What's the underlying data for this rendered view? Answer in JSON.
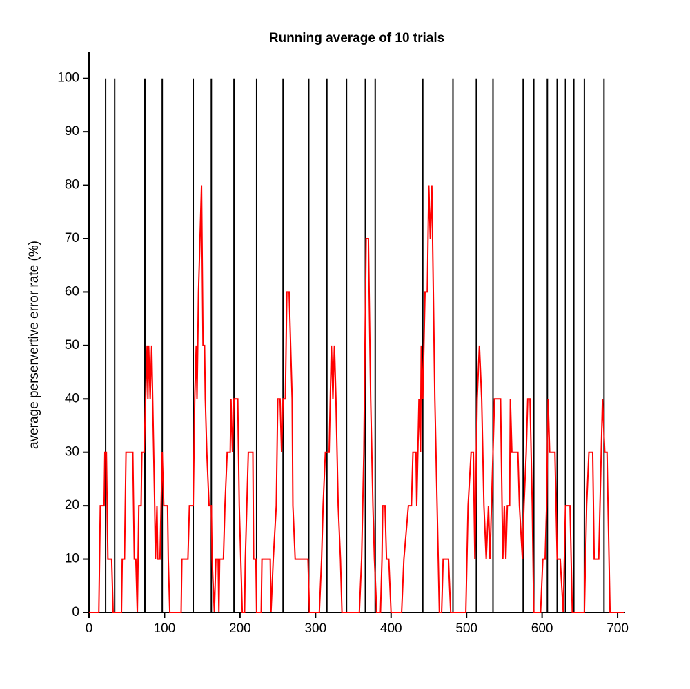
{
  "chart_data": {
    "type": "line",
    "title": "Running average of 10 trials",
    "ylabel": "average perservertive error rate (%)",
    "xlim": [
      0,
      710
    ],
    "ylim": [
      0,
      105
    ],
    "xticks": [
      0,
      100,
      200,
      300,
      400,
      500,
      600,
      700
    ],
    "yticks": [
      0,
      10,
      20,
      30,
      40,
      50,
      60,
      70,
      80,
      90,
      100
    ],
    "vlines": {
      "color": "#000000",
      "ymin": 0,
      "ymax": 100,
      "x": [
        22,
        34,
        74,
        97,
        138,
        162,
        192,
        222,
        257,
        291,
        315,
        341,
        366,
        379,
        442,
        482,
        513,
        535,
        575,
        589,
        607,
        620,
        631,
        642,
        656,
        682
      ]
    },
    "series": [
      {
        "color": "#ff0000",
        "x": [
          0,
          13,
          15,
          20,
          21,
          23,
          24,
          25,
          30,
          32,
          43,
          44,
          47,
          48,
          49,
          58,
          59,
          60,
          62,
          64,
          66,
          69,
          70,
          73,
          75,
          77,
          78,
          79,
          81,
          83,
          87,
          88,
          90,
          91,
          94,
          97,
          99,
          104,
          105,
          107,
          122,
          123,
          131,
          133,
          138,
          140,
          142,
          143,
          145,
          149,
          151,
          153,
          154,
          156,
          159,
          162,
          163,
          166,
          168,
          171,
          172,
          173,
          178,
          180,
          183,
          187,
          188,
          190,
          192,
          197,
          199,
          201,
          203,
          206,
          207,
          209,
          211,
          217,
          218,
          221,
          222,
          228,
          229,
          240,
          241,
          244,
          248,
          250,
          253,
          255,
          257,
          260,
          262,
          265,
          267,
          269,
          270,
          273,
          290,
          292,
          305,
          308,
          310,
          313,
          318,
          321,
          323,
          325,
          327,
          330,
          333,
          335,
          358,
          361,
          364,
          367,
          370,
          373,
          376,
          378,
          381,
          386,
          388,
          389,
          392,
          394,
          397,
          400,
          414,
          417,
          423,
          427,
          429,
          433,
          434,
          437,
          439,
          440,
          442,
          445,
          448,
          450,
          452,
          454,
          456,
          458,
          461,
          464,
          467,
          469,
          476,
          479,
          499,
          502,
          506,
          509,
          511,
          514,
          517,
          520,
          523,
          526,
          529,
          531,
          535,
          537,
          545,
          547,
          548,
          550,
          552,
          554,
          557,
          558,
          560,
          568,
          570,
          574,
          576,
          579,
          581,
          584,
          587,
          589,
          598,
          601,
          604,
          606,
          608,
          610,
          617,
          620,
          624,
          628,
          631,
          637,
          640,
          656,
          659,
          662,
          667,
          669,
          675,
          680,
          683,
          686,
          690,
          709
        ],
        "values": [
          0,
          0,
          20,
          20,
          30,
          30,
          20,
          10,
          10,
          0,
          0,
          10,
          10,
          20,
          30,
          30,
          20,
          10,
          10,
          0,
          20,
          20,
          30,
          30,
          40,
          50,
          40,
          50,
          40,
          50,
          20,
          10,
          20,
          10,
          10,
          30,
          20,
          20,
          10,
          0,
          0,
          10,
          10,
          20,
          20,
          40,
          50,
          40,
          60,
          80,
          50,
          50,
          40,
          30,
          20,
          20,
          10,
          0,
          10,
          10,
          0,
          10,
          10,
          20,
          30,
          30,
          40,
          30,
          40,
          40,
          20,
          10,
          0,
          0,
          10,
          20,
          30,
          30,
          10,
          10,
          0,
          0,
          10,
          10,
          0,
          10,
          20,
          40,
          40,
          30,
          40,
          40,
          60,
          60,
          50,
          40,
          20,
          10,
          10,
          0,
          0,
          10,
          20,
          30,
          30,
          50,
          40,
          50,
          40,
          20,
          10,
          0,
          0,
          10,
          30,
          70,
          70,
          40,
          20,
          10,
          0,
          0,
          10,
          20,
          20,
          10,
          10,
          0,
          0,
          10,
          20,
          20,
          30,
          30,
          20,
          40,
          30,
          50,
          40,
          60,
          60,
          80,
          70,
          80,
          60,
          40,
          20,
          0,
          0,
          10,
          10,
          0,
          0,
          20,
          30,
          30,
          10,
          40,
          50,
          40,
          20,
          10,
          20,
          10,
          30,
          40,
          40,
          20,
          10,
          20,
          10,
          20,
          20,
          40,
          30,
          30,
          20,
          10,
          20,
          30,
          40,
          40,
          20,
          0,
          0,
          10,
          10,
          20,
          40,
          30,
          30,
          10,
          10,
          0,
          20,
          20,
          0,
          0,
          20,
          30,
          30,
          10,
          10,
          40,
          30,
          30,
          0,
          0
        ]
      }
    ]
  }
}
